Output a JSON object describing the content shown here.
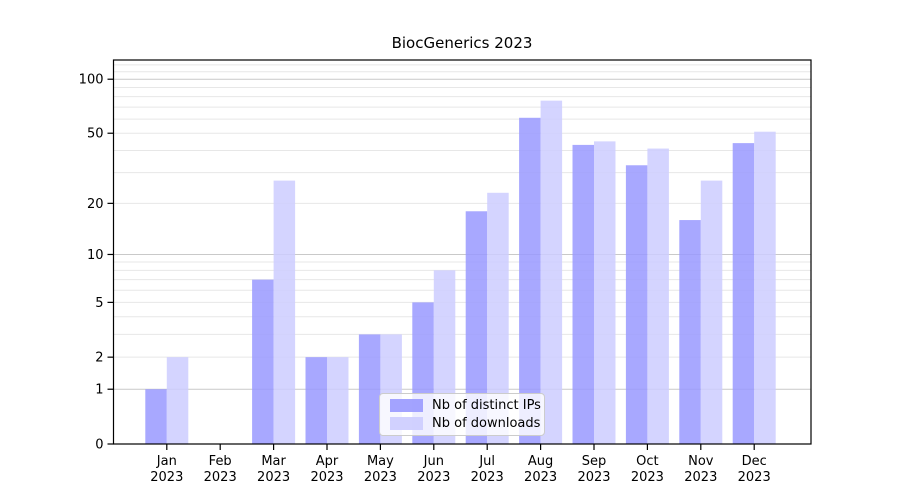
{
  "figure": {
    "title": "BiocGenerics 2023",
    "background_color": "#ffffff",
    "text_color": "#000000",
    "spine_color": "#000000",
    "major_gridline_color": "#c9c9c9",
    "minor_gridline_color": "#e7e7e7"
  },
  "legend": {
    "position": "lower center",
    "items": [
      {
        "label": "Nb of distinct IPs",
        "color": "#9999ff"
      },
      {
        "label": "Nb of downloads",
        "color": "#ccccff"
      }
    ]
  },
  "chart_data": {
    "type": "bar",
    "title": "BiocGenerics 2023",
    "categories": [
      "Jan 2023",
      "Feb 2023",
      "Mar 2023",
      "Apr 2023",
      "May 2023",
      "Jun 2023",
      "Jul 2023",
      "Aug 2023",
      "Sep 2023",
      "Oct 2023",
      "Nov 2023",
      "Dec 2023"
    ],
    "series": [
      {
        "name": "Nb of distinct IPs",
        "color": "#9999ff",
        "opacity": 0.85,
        "values": [
          1,
          0,
          7,
          2,
          3,
          5,
          18,
          61,
          43,
          33,
          16,
          44
        ]
      },
      {
        "name": "Nb of downloads",
        "color": "#ccccff",
        "opacity": 0.85,
        "values": [
          2,
          0,
          27,
          2,
          3,
          8,
          23,
          76,
          45,
          41,
          27,
          51
        ]
      }
    ],
    "xlabel": "",
    "ylabel": "",
    "yscale": "log1p",
    "ylim": [
      0,
      130
    ],
    "y_ticks": [
      0,
      1,
      2,
      5,
      10,
      20,
      50,
      100
    ],
    "y_major_gridlines": [
      1,
      10,
      100
    ],
    "y_minor_gridlines": [
      2,
      3,
      4,
      5,
      6,
      7,
      8,
      9,
      20,
      30,
      40,
      50,
      60,
      70,
      80,
      90,
      110,
      120
    ],
    "grid": "both",
    "legend_position": "lower center"
  }
}
